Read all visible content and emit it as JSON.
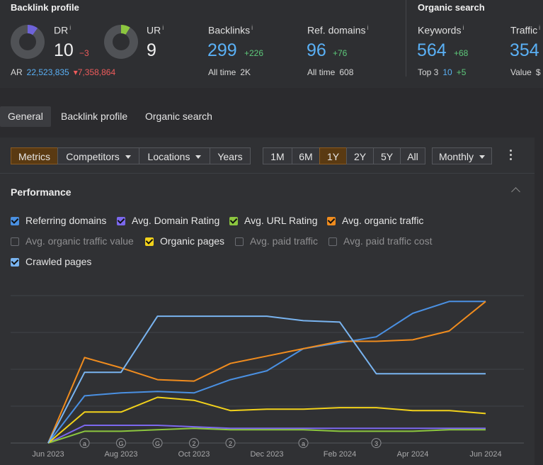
{
  "backlink_profile": {
    "title": "Backlink profile",
    "dr": {
      "label": "DR",
      "info": "i",
      "value": "10",
      "delta": "−3",
      "fill_fraction": 0.1,
      "color": "#6e63d9"
    },
    "ur": {
      "label": "UR",
      "info": "i",
      "value": "9",
      "fill_fraction": 0.09,
      "color": "#8cc63f"
    },
    "ar": {
      "label": "AR",
      "value": "22,523,835",
      "delta": "▾7,358,864"
    },
    "backlinks": {
      "label": "Backlinks",
      "info": "i",
      "value": "299",
      "delta": "+226",
      "sub_label": "All time",
      "sub_value": "2K"
    },
    "ref_domains": {
      "label": "Ref. domains",
      "info": "i",
      "value": "96",
      "delta": "+76",
      "sub_label": "All time",
      "sub_value": "608"
    }
  },
  "organic_search": {
    "title": "Organic search",
    "keywords": {
      "label": "Keywords",
      "info": "i",
      "value": "564",
      "delta": "+68",
      "sub_label": "Top 3",
      "sub_value": "10",
      "sub_delta": "+5"
    },
    "traffic": {
      "label": "Traffic",
      "info": "i",
      "value": "354",
      "sub_label": "Value",
      "sub_value": "$"
    }
  },
  "tabs": [
    {
      "label": "General",
      "active": true
    },
    {
      "label": "Backlink profile",
      "active": false
    },
    {
      "label": "Organic search",
      "active": false
    }
  ],
  "toolbar": {
    "metrics": "Metrics",
    "competitors": "Competitors",
    "locations": "Locations",
    "years": "Years",
    "ranges": [
      "1M",
      "6M",
      "1Y",
      "2Y",
      "5Y",
      "All"
    ],
    "active_range": "1Y",
    "interval": "Monthly"
  },
  "performance": {
    "title": "Performance",
    "toggles": [
      {
        "label": "Referring domains",
        "checked": true,
        "color": "#4a90e2"
      },
      {
        "label": "Avg. Domain Rating",
        "checked": true,
        "color": "#7b68ee"
      },
      {
        "label": "Avg. URL Rating",
        "checked": true,
        "color": "#8cc63f"
      },
      {
        "label": "Avg. organic traffic",
        "checked": true,
        "color": "#f08c1e"
      },
      {
        "label": "Avg. organic traffic value",
        "checked": false
      },
      {
        "label": "Organic pages",
        "checked": true,
        "color": "#f2d21b"
      },
      {
        "label": "Avg. paid traffic",
        "checked": false
      },
      {
        "label": "Avg. paid traffic cost",
        "checked": false
      },
      {
        "label": "Crawled pages",
        "checked": true,
        "color": "#79b4f0"
      }
    ]
  },
  "chart_data": {
    "type": "line",
    "x": [
      "Jun 2023",
      "Jul 2023",
      "Aug 2023",
      "Sep 2023",
      "Oct 2023",
      "Nov 2023",
      "Dec 2023",
      "Jan 2024",
      "Feb 2024",
      "Mar 2024",
      "Apr 2024",
      "May 2024",
      "Jun 2024"
    ],
    "x_tick_labels": [
      "Jun 2023",
      "Aug 2023",
      "Oct 2023",
      "Dec 2023",
      "Feb 2024",
      "Apr 2024",
      "Jun 2024"
    ],
    "ylim": [
      0,
      100
    ],
    "grid": true,
    "series": [
      {
        "name": "Referring domains",
        "color": "#4a90e2",
        "values": [
          0,
          32,
          34,
          35,
          34,
          43,
          49,
          64,
          68,
          72,
          88,
          96,
          96
        ]
      },
      {
        "name": "Avg. Domain Rating",
        "color": "#7b68ee",
        "values": [
          0,
          12,
          12,
          12,
          11,
          10,
          10,
          10,
          10,
          10,
          10,
          10,
          10
        ]
      },
      {
        "name": "Avg. URL Rating",
        "color": "#8cc63f",
        "values": [
          0,
          8,
          8,
          9,
          10,
          9,
          9,
          9,
          8,
          8,
          8,
          9,
          9
        ]
      },
      {
        "name": "Avg. organic traffic",
        "color": "#f08c1e",
        "values": [
          0,
          58,
          51,
          43,
          42,
          54,
          59,
          64,
          69,
          69,
          70,
          76,
          96
        ]
      },
      {
        "name": "Organic pages",
        "color": "#f2d21b",
        "values": [
          0,
          21,
          21,
          31,
          29,
          22,
          23,
          23,
          24,
          24,
          22,
          22,
          20
        ]
      },
      {
        "name": "Crawled pages",
        "color": "#79b4f0",
        "values": [
          0,
          48,
          48,
          86,
          86,
          86,
          86,
          83,
          82,
          47,
          47,
          47,
          47
        ]
      }
    ],
    "annotations": [
      {
        "x": "Jul 2023",
        "label": "a"
      },
      {
        "x": "Aug 2023",
        "label": "G"
      },
      {
        "x": "Sep 2023",
        "label": "G"
      },
      {
        "x": "Oct 2023",
        "label": "2"
      },
      {
        "x": "Nov 2023",
        "label": "2"
      },
      {
        "x": "Jan 2024",
        "label": "a"
      },
      {
        "x": "Mar 2024",
        "label": "3"
      }
    ]
  }
}
